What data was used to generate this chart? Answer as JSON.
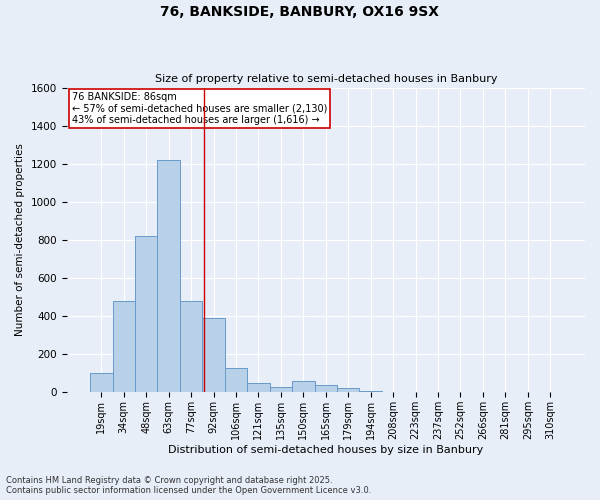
{
  "title1": "76, BANKSIDE, BANBURY, OX16 9SX",
  "title2": "Size of property relative to semi-detached houses in Banbury",
  "xlabel": "Distribution of semi-detached houses by size in Banbury",
  "ylabel": "Number of semi-detached properties",
  "bin_labels": [
    "19sqm",
    "34sqm",
    "48sqm",
    "63sqm",
    "77sqm",
    "92sqm",
    "106sqm",
    "121sqm",
    "135sqm",
    "150sqm",
    "165sqm",
    "179sqm",
    "194sqm",
    "208sqm",
    "223sqm",
    "237sqm",
    "252sqm",
    "266sqm",
    "281sqm",
    "295sqm",
    "310sqm"
  ],
  "bar_values": [
    100,
    480,
    820,
    1220,
    480,
    390,
    130,
    50,
    30,
    60,
    40,
    20,
    5,
    0,
    0,
    0,
    0,
    0,
    0,
    0,
    0
  ],
  "bar_color": "#b8d0e8",
  "bar_edge_color": "#6699cc",
  "vline_x": 4.57,
  "vline_color": "#cc0000",
  "annotation_title": "76 BANKSIDE: 86sqm",
  "annotation_line1": "← 57% of semi-detached houses are smaller (2,130)",
  "annotation_line2": "43% of semi-detached houses are larger (1,616) →",
  "annotation_box_color": "#cc0000",
  "ylim": [
    0,
    1600
  ],
  "yticks": [
    0,
    200,
    400,
    600,
    800,
    1000,
    1200,
    1400,
    1600
  ],
  "footnote1": "Contains HM Land Registry data © Crown copyright and database right 2025.",
  "footnote2": "Contains public sector information licensed under the Open Government Licence v3.0.",
  "bg_color": "#e8eef8",
  "plot_bg_color": "#e8eef8"
}
